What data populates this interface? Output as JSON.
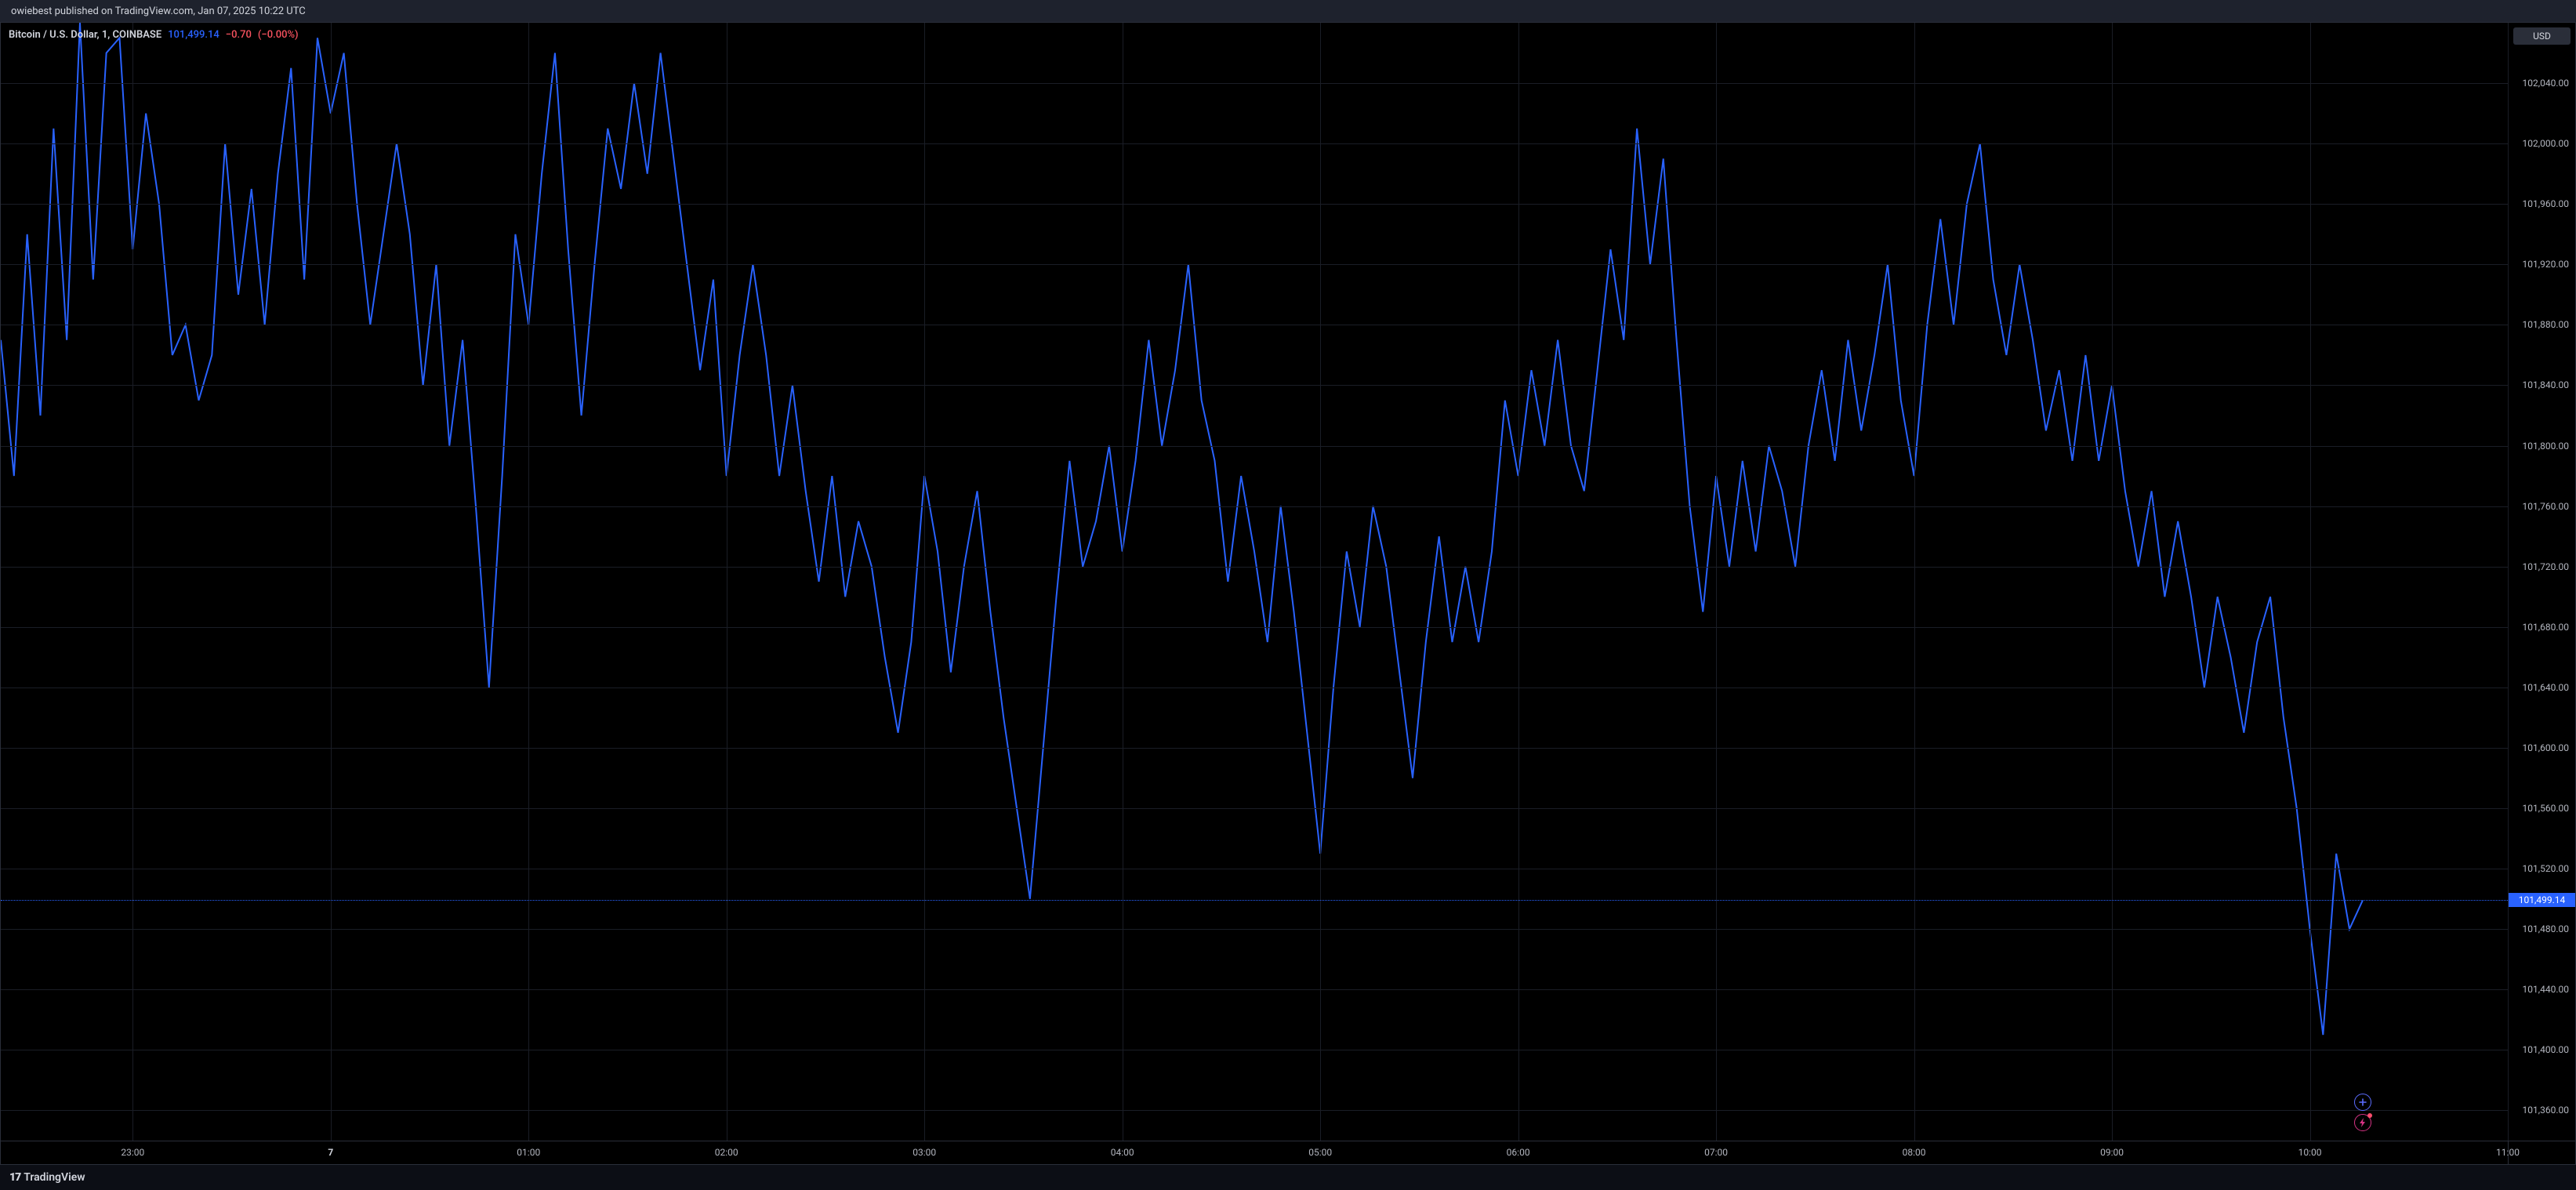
{
  "header": {
    "publish_text": "owiebest published on TradingView.com, Jan 07, 2025 10:22 UTC"
  },
  "symbol": {
    "name": "Bitcoin / U.S. Dollar, 1, COINBASE",
    "last": "101,499.14",
    "delta": "−0.70",
    "pct": "(−0.00%)"
  },
  "currency_button": "USD",
  "footer": {
    "brand": "TradingView"
  },
  "chart": {
    "type": "line",
    "line_color": "#2962ff",
    "line_width": 2,
    "background_color": "#000000",
    "grid_color": "#1a1d26",
    "current_price": 101499.14,
    "ylim": [
      101340,
      102080
    ],
    "yticks": [
      102040,
      102000,
      101960,
      101920,
      101880,
      101840,
      101800,
      101760,
      101720,
      101680,
      101640,
      101600,
      101560,
      101520,
      101480,
      101440,
      101400,
      101360
    ],
    "ytick_labels": [
      "102,040.00",
      "102,000.00",
      "101,960.00",
      "101,920.00",
      "101,880.00",
      "101,840.00",
      "101,800.00",
      "101,760.00",
      "101,720.00",
      "101,680.00",
      "101,640.00",
      "101,600.00",
      "101,560.00",
      "101,520.00",
      "101,480.00",
      "101,440.00",
      "101,400.00",
      "101,360.00"
    ],
    "xlim": [
      0,
      760
    ],
    "xticks": [
      40,
      100,
      160,
      220,
      280,
      340,
      400,
      460,
      520,
      580,
      640,
      700,
      760
    ],
    "xtick_labels": [
      "23:00",
      "7",
      "01:00",
      "02:00",
      "03:00",
      "04:00",
      "05:00",
      "06:00",
      "07:00",
      "08:00",
      "09:00",
      "10:00",
      "11:00"
    ],
    "xtick_bold": [
      false,
      true,
      false,
      false,
      false,
      false,
      false,
      false,
      false,
      false,
      false,
      false,
      false
    ],
    "series": [
      [
        0,
        101870
      ],
      [
        4,
        101780
      ],
      [
        8,
        101940
      ],
      [
        12,
        101820
      ],
      [
        16,
        102010
      ],
      [
        20,
        101870
      ],
      [
        24,
        102080
      ],
      [
        28,
        101910
      ],
      [
        32,
        102060
      ],
      [
        36,
        102070
      ],
      [
        40,
        101930
      ],
      [
        44,
        102020
      ],
      [
        48,
        101960
      ],
      [
        52,
        101860
      ],
      [
        56,
        101880
      ],
      [
        60,
        101830
      ],
      [
        64,
        101860
      ],
      [
        68,
        102000
      ],
      [
        72,
        101900
      ],
      [
        76,
        101970
      ],
      [
        80,
        101880
      ],
      [
        84,
        101980
      ],
      [
        88,
        102050
      ],
      [
        92,
        101910
      ],
      [
        96,
        102070
      ],
      [
        100,
        102020
      ],
      [
        104,
        102060
      ],
      [
        108,
        101960
      ],
      [
        112,
        101880
      ],
      [
        116,
        101940
      ],
      [
        120,
        102000
      ],
      [
        124,
        101940
      ],
      [
        128,
        101840
      ],
      [
        132,
        101920
      ],
      [
        136,
        101800
      ],
      [
        140,
        101870
      ],
      [
        144,
        101760
      ],
      [
        148,
        101640
      ],
      [
        152,
        101780
      ],
      [
        156,
        101940
      ],
      [
        160,
        101880
      ],
      [
        164,
        101980
      ],
      [
        168,
        102060
      ],
      [
        172,
        101930
      ],
      [
        176,
        101820
      ],
      [
        180,
        101920
      ],
      [
        184,
        102010
      ],
      [
        188,
        101970
      ],
      [
        192,
        102040
      ],
      [
        196,
        101980
      ],
      [
        200,
        102060
      ],
      [
        204,
        101990
      ],
      [
        208,
        101920
      ],
      [
        212,
        101850
      ],
      [
        216,
        101910
      ],
      [
        220,
        101780
      ],
      [
        224,
        101860
      ],
      [
        228,
        101920
      ],
      [
        232,
        101860
      ],
      [
        236,
        101780
      ],
      [
        240,
        101840
      ],
      [
        244,
        101770
      ],
      [
        248,
        101710
      ],
      [
        252,
        101780
      ],
      [
        256,
        101700
      ],
      [
        260,
        101750
      ],
      [
        264,
        101720
      ],
      [
        268,
        101660
      ],
      [
        272,
        101610
      ],
      [
        276,
        101670
      ],
      [
        280,
        101780
      ],
      [
        284,
        101730
      ],
      [
        288,
        101650
      ],
      [
        292,
        101720
      ],
      [
        296,
        101770
      ],
      [
        300,
        101690
      ],
      [
        304,
        101620
      ],
      [
        308,
        101560
      ],
      [
        312,
        101500
      ],
      [
        316,
        101600
      ],
      [
        320,
        101700
      ],
      [
        324,
        101790
      ],
      [
        328,
        101720
      ],
      [
        332,
        101750
      ],
      [
        336,
        101800
      ],
      [
        340,
        101730
      ],
      [
        344,
        101790
      ],
      [
        348,
        101870
      ],
      [
        352,
        101800
      ],
      [
        356,
        101850
      ],
      [
        360,
        101920
      ],
      [
        364,
        101830
      ],
      [
        368,
        101790
      ],
      [
        372,
        101710
      ],
      [
        376,
        101780
      ],
      [
        380,
        101730
      ],
      [
        384,
        101670
      ],
      [
        388,
        101760
      ],
      [
        392,
        101690
      ],
      [
        396,
        101610
      ],
      [
        400,
        101530
      ],
      [
        404,
        101640
      ],
      [
        408,
        101730
      ],
      [
        412,
        101680
      ],
      [
        416,
        101760
      ],
      [
        420,
        101720
      ],
      [
        424,
        101650
      ],
      [
        428,
        101580
      ],
      [
        432,
        101670
      ],
      [
        436,
        101740
      ],
      [
        440,
        101670
      ],
      [
        444,
        101720
      ],
      [
        448,
        101670
      ],
      [
        452,
        101730
      ],
      [
        456,
        101830
      ],
      [
        460,
        101780
      ],
      [
        464,
        101850
      ],
      [
        468,
        101800
      ],
      [
        472,
        101870
      ],
      [
        476,
        101800
      ],
      [
        480,
        101770
      ],
      [
        484,
        101850
      ],
      [
        488,
        101930
      ],
      [
        492,
        101870
      ],
      [
        496,
        102010
      ],
      [
        500,
        101920
      ],
      [
        504,
        101990
      ],
      [
        508,
        101870
      ],
      [
        512,
        101760
      ],
      [
        516,
        101690
      ],
      [
        520,
        101780
      ],
      [
        524,
        101720
      ],
      [
        528,
        101790
      ],
      [
        532,
        101730
      ],
      [
        536,
        101800
      ],
      [
        540,
        101770
      ],
      [
        544,
        101720
      ],
      [
        548,
        101800
      ],
      [
        552,
        101850
      ],
      [
        556,
        101790
      ],
      [
        560,
        101870
      ],
      [
        564,
        101810
      ],
      [
        568,
        101860
      ],
      [
        572,
        101920
      ],
      [
        576,
        101830
      ],
      [
        580,
        101780
      ],
      [
        584,
        101880
      ],
      [
        588,
        101950
      ],
      [
        592,
        101880
      ],
      [
        596,
        101960
      ],
      [
        600,
        102000
      ],
      [
        604,
        101910
      ],
      [
        608,
        101860
      ],
      [
        612,
        101920
      ],
      [
        616,
        101870
      ],
      [
        620,
        101810
      ],
      [
        624,
        101850
      ],
      [
        628,
        101790
      ],
      [
        632,
        101860
      ],
      [
        636,
        101790
      ],
      [
        640,
        101840
      ],
      [
        644,
        101770
      ],
      [
        648,
        101720
      ],
      [
        652,
        101770
      ],
      [
        656,
        101700
      ],
      [
        660,
        101750
      ],
      [
        664,
        101700
      ],
      [
        668,
        101640
      ],
      [
        672,
        101700
      ],
      [
        676,
        101660
      ],
      [
        680,
        101610
      ],
      [
        684,
        101670
      ],
      [
        688,
        101700
      ],
      [
        692,
        101620
      ],
      [
        696,
        101560
      ],
      [
        700,
        101480
      ],
      [
        704,
        101410
      ],
      [
        708,
        101530
      ],
      [
        712,
        101480
      ],
      [
        716,
        101499
      ]
    ]
  },
  "action_icons": {
    "plus_x": 716,
    "bolt_x": 716
  }
}
